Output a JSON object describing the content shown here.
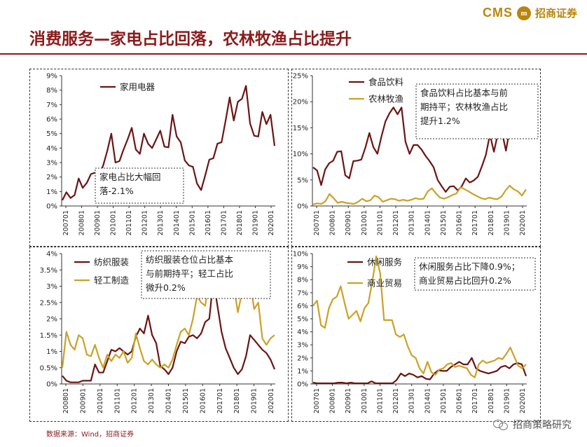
{
  "header": {
    "logo_cms": "CMS",
    "logo_mark": "m",
    "logo_cn": "招商证券"
  },
  "title": "消费服务—家电占比回落，农林牧渔占比提升",
  "source": "数据来源：Wind，招商证券",
  "watermark": "招商策略研究",
  "colors": {
    "series1": "#6b1414",
    "series2": "#c9a227",
    "title": "#8b1a1a"
  },
  "chart_data": [
    {
      "type": "line",
      "x_tick_labels": [
        "200701",
        "200801",
        "200901",
        "201001",
        "201101",
        "201201",
        "201301",
        "201401",
        "201501",
        "201601",
        "201701",
        "201801",
        "201901",
        "202001"
      ],
      "y_ticks": [
        "0%",
        "1%",
        "2%",
        "3%",
        "4%",
        "5%",
        "6%",
        "7%",
        "8%",
        "9%"
      ],
      "ylim": [
        0,
        9
      ],
      "annotation": [
        "家电占比大幅回",
        "落-2.1%"
      ],
      "series": [
        {
          "name": "家用电器",
          "values": [
            0.4,
            0.95,
            0.55,
            0.75,
            1.9,
            1.25,
            1.6,
            2.2,
            2.3,
            2.1,
            2.8,
            3.8,
            5.0,
            3.0,
            3.1,
            3.9,
            4.6,
            5.4,
            3.9,
            3.6,
            5.0,
            4.3,
            4.0,
            4.6,
            5.2,
            4.1,
            4.05,
            6.3,
            4.8,
            4.4,
            3.15,
            2.8,
            2.7,
            1.55,
            1.1,
            2.1,
            3.2,
            3.3,
            4.3,
            4.4,
            5.9,
            7.5,
            5.9,
            7.2,
            7.4,
            8.3,
            5.7,
            4.85,
            4.8,
            6.5,
            5.65,
            6.3,
            4.15
          ]
        }
      ]
    },
    {
      "type": "line",
      "x_tick_labels": [
        "200701",
        "200801",
        "200901",
        "201001",
        "201101",
        "201201",
        "201301",
        "201401",
        "201501",
        "201601",
        "201701",
        "201801",
        "201901",
        "202001"
      ],
      "y_ticks": [
        "0%",
        "5%",
        "10%",
        "15%",
        "20%",
        "25%"
      ],
      "ylim": [
        0,
        25
      ],
      "annotation": [
        "食品饮料占比基本与前",
        "期持平；农林牧渔占比",
        "提升1.2%"
      ],
      "series": [
        {
          "name": "食品饮料",
          "values": [
            7.4,
            6.8,
            4.0,
            7.0,
            8.2,
            8.7,
            10.4,
            10.5,
            5.9,
            5.3,
            8.6,
            8.7,
            8.9,
            11.2,
            14.0,
            11.3,
            10.0,
            13.3,
            16.2,
            17.8,
            18.9,
            17.6,
            18.9,
            12.3,
            10.0,
            11.7,
            11.7,
            10.8,
            9.6,
            8.6,
            7.4,
            5.0,
            3.8,
            2.7,
            3.7,
            3.8,
            3.0,
            3.8,
            5.3,
            4.5,
            4.9,
            5.6,
            7.6,
            9.8,
            13.7,
            10.4,
            13.9,
            14.2,
            10.6,
            15.0,
            18.0,
            16.3,
            14.9,
            14.9
          ]
        },
        {
          "name": "农林牧渔",
          "values": [
            0.3,
            0.5,
            0.4,
            0.9,
            2.3,
            1.5,
            0.6,
            0.8,
            0.6,
            0.5,
            0.4,
            0.8,
            1.4,
            0.9,
            1.1,
            2.0,
            1.7,
            0.8,
            1.1,
            1.4,
            1.3,
            1.0,
            1.2,
            1.0,
            1.2,
            1.5,
            1.3,
            1.4,
            2.8,
            3.4,
            2.4,
            1.6,
            1.4,
            1.7,
            2.1,
            2.4,
            3.6,
            3.2,
            2.8,
            2.3,
            1.9,
            1.5,
            1.3,
            1.6,
            1.4,
            1.3,
            1.8,
            3.0,
            3.9,
            3.2,
            2.8,
            2.0,
            3.2
          ]
        }
      ]
    },
    {
      "type": "line",
      "x_tick_labels": [
        "200801",
        "200901",
        "201001",
        "201101",
        "201201",
        "201301",
        "201401",
        "201501",
        "201601",
        "201701",
        "201801",
        "201901",
        "202001"
      ],
      "y_ticks": [
        "0%",
        "0.5%",
        "1%",
        "1.5%",
        "2%",
        "2.5%",
        "3%",
        "3.5%",
        "4%"
      ],
      "ylim": [
        0,
        4
      ],
      "annotation": [
        "纺织服装仓位占比基本",
        "与前期持平；轻工占比",
        "微升0.2%"
      ],
      "series": [
        {
          "name": "纺织服装",
          "values": [
            0.25,
            0.1,
            0.05,
            0.05,
            0.05,
            0.1,
            0.1,
            0.1,
            0.6,
            0.35,
            0.35,
            0.7,
            1.05,
            1.0,
            1.1,
            1.0,
            0.9,
            1.0,
            1.45,
            1.7,
            1.55,
            2.1,
            1.5,
            1.25,
            0.55,
            0.45,
            0.3,
            0.5,
            1.0,
            1.3,
            1.25,
            1.45,
            1.5,
            1.4,
            1.55,
            1.9,
            2.0,
            3.2,
            2.4,
            1.6,
            1.1,
            0.8,
            0.5,
            0.3,
            0.45,
            0.85,
            1.5,
            1.35,
            1.2,
            1.05,
            0.95,
            0.75,
            0.45
          ]
        },
        {
          "name": "轻工制造",
          "values": [
            0.5,
            1.6,
            1.2,
            1.05,
            1.5,
            1.4,
            0.9,
            0.85,
            1.2,
            0.8,
            0.5,
            0.9,
            0.7,
            0.9,
            0.8,
            1.0,
            0.65,
            0.8,
            1.55,
            1.1,
            0.7,
            0.6,
            0.75,
            0.6,
            0.5,
            0.6,
            0.5,
            0.75,
            1.2,
            1.6,
            1.7,
            1.5,
            2.0,
            2.7,
            2.5,
            2.4,
            3.2,
            3.8,
            3.5,
            3.0,
            3.6,
            3.2,
            3.0,
            2.2,
            2.8,
            2.8,
            3.1,
            2.3,
            2.5,
            1.4,
            1.2,
            1.4,
            1.5
          ]
        }
      ]
    },
    {
      "type": "line",
      "x_tick_labels": [
        "200701",
        "200801",
        "200901",
        "201001",
        "201101",
        "201201",
        "201301",
        "201401",
        "201501",
        "201601",
        "201701",
        "201801",
        "201901",
        "202001"
      ],
      "y_ticks": [
        "0%",
        "1%",
        "2%",
        "3%",
        "4%",
        "5%",
        "6%",
        "7%",
        "8%",
        "9%",
        "10%"
      ],
      "ylim": [
        0,
        10
      ],
      "annotation": [
        "休闲服务占比下降0.9%；",
        "商业贸易占比回升0.2%"
      ],
      "series": [
        {
          "name": "休闲服务",
          "values": [
            0.1,
            0.05,
            0.05,
            0.05,
            0.05,
            0.05,
            0.1,
            0.1,
            0.05,
            0.1,
            0.05,
            0.05,
            0.05,
            0.05,
            0.2,
            0.05,
            0.05,
            0.05,
            0.05,
            0.05,
            0.3,
            0.8,
            0.6,
            0.8,
            0.7,
            0.5,
            0.6,
            0.4,
            0.35,
            0.8,
            1.05,
            1.0,
            1.0,
            1.3,
            1.5,
            1.7,
            1.5,
            1.5,
            2.0,
            1.2,
            1.0,
            0.9,
            0.8,
            0.9,
            1.0,
            1.3,
            1.4,
            1.2,
            1.5,
            1.6,
            1.5,
            0.6
          ]
        },
        {
          "name": "商业贸易",
          "values": [
            6.0,
            6.4,
            4.5,
            4.3,
            5.8,
            6.5,
            6.7,
            7.5,
            6.2,
            5.0,
            5.3,
            5.6,
            4.8,
            5.8,
            6.2,
            7.8,
            9.8,
            8.5,
            4.9,
            4.9,
            4.9,
            3.8,
            3.6,
            3.8,
            2.9,
            2.2,
            2.0,
            1.2,
            0.8,
            1.7,
            0.9,
            0.7,
            1.1,
            1.2,
            1.5,
            1.6,
            1.3,
            1.4,
            1.3,
            1.2,
            0.7,
            0.5,
            1.5,
            1.8,
            1.6,
            1.7,
            1.8,
            2.0,
            1.9,
            2.3,
            2.8,
            2.1,
            1.4,
            1.2,
            1.5
          ]
        }
      ]
    }
  ]
}
